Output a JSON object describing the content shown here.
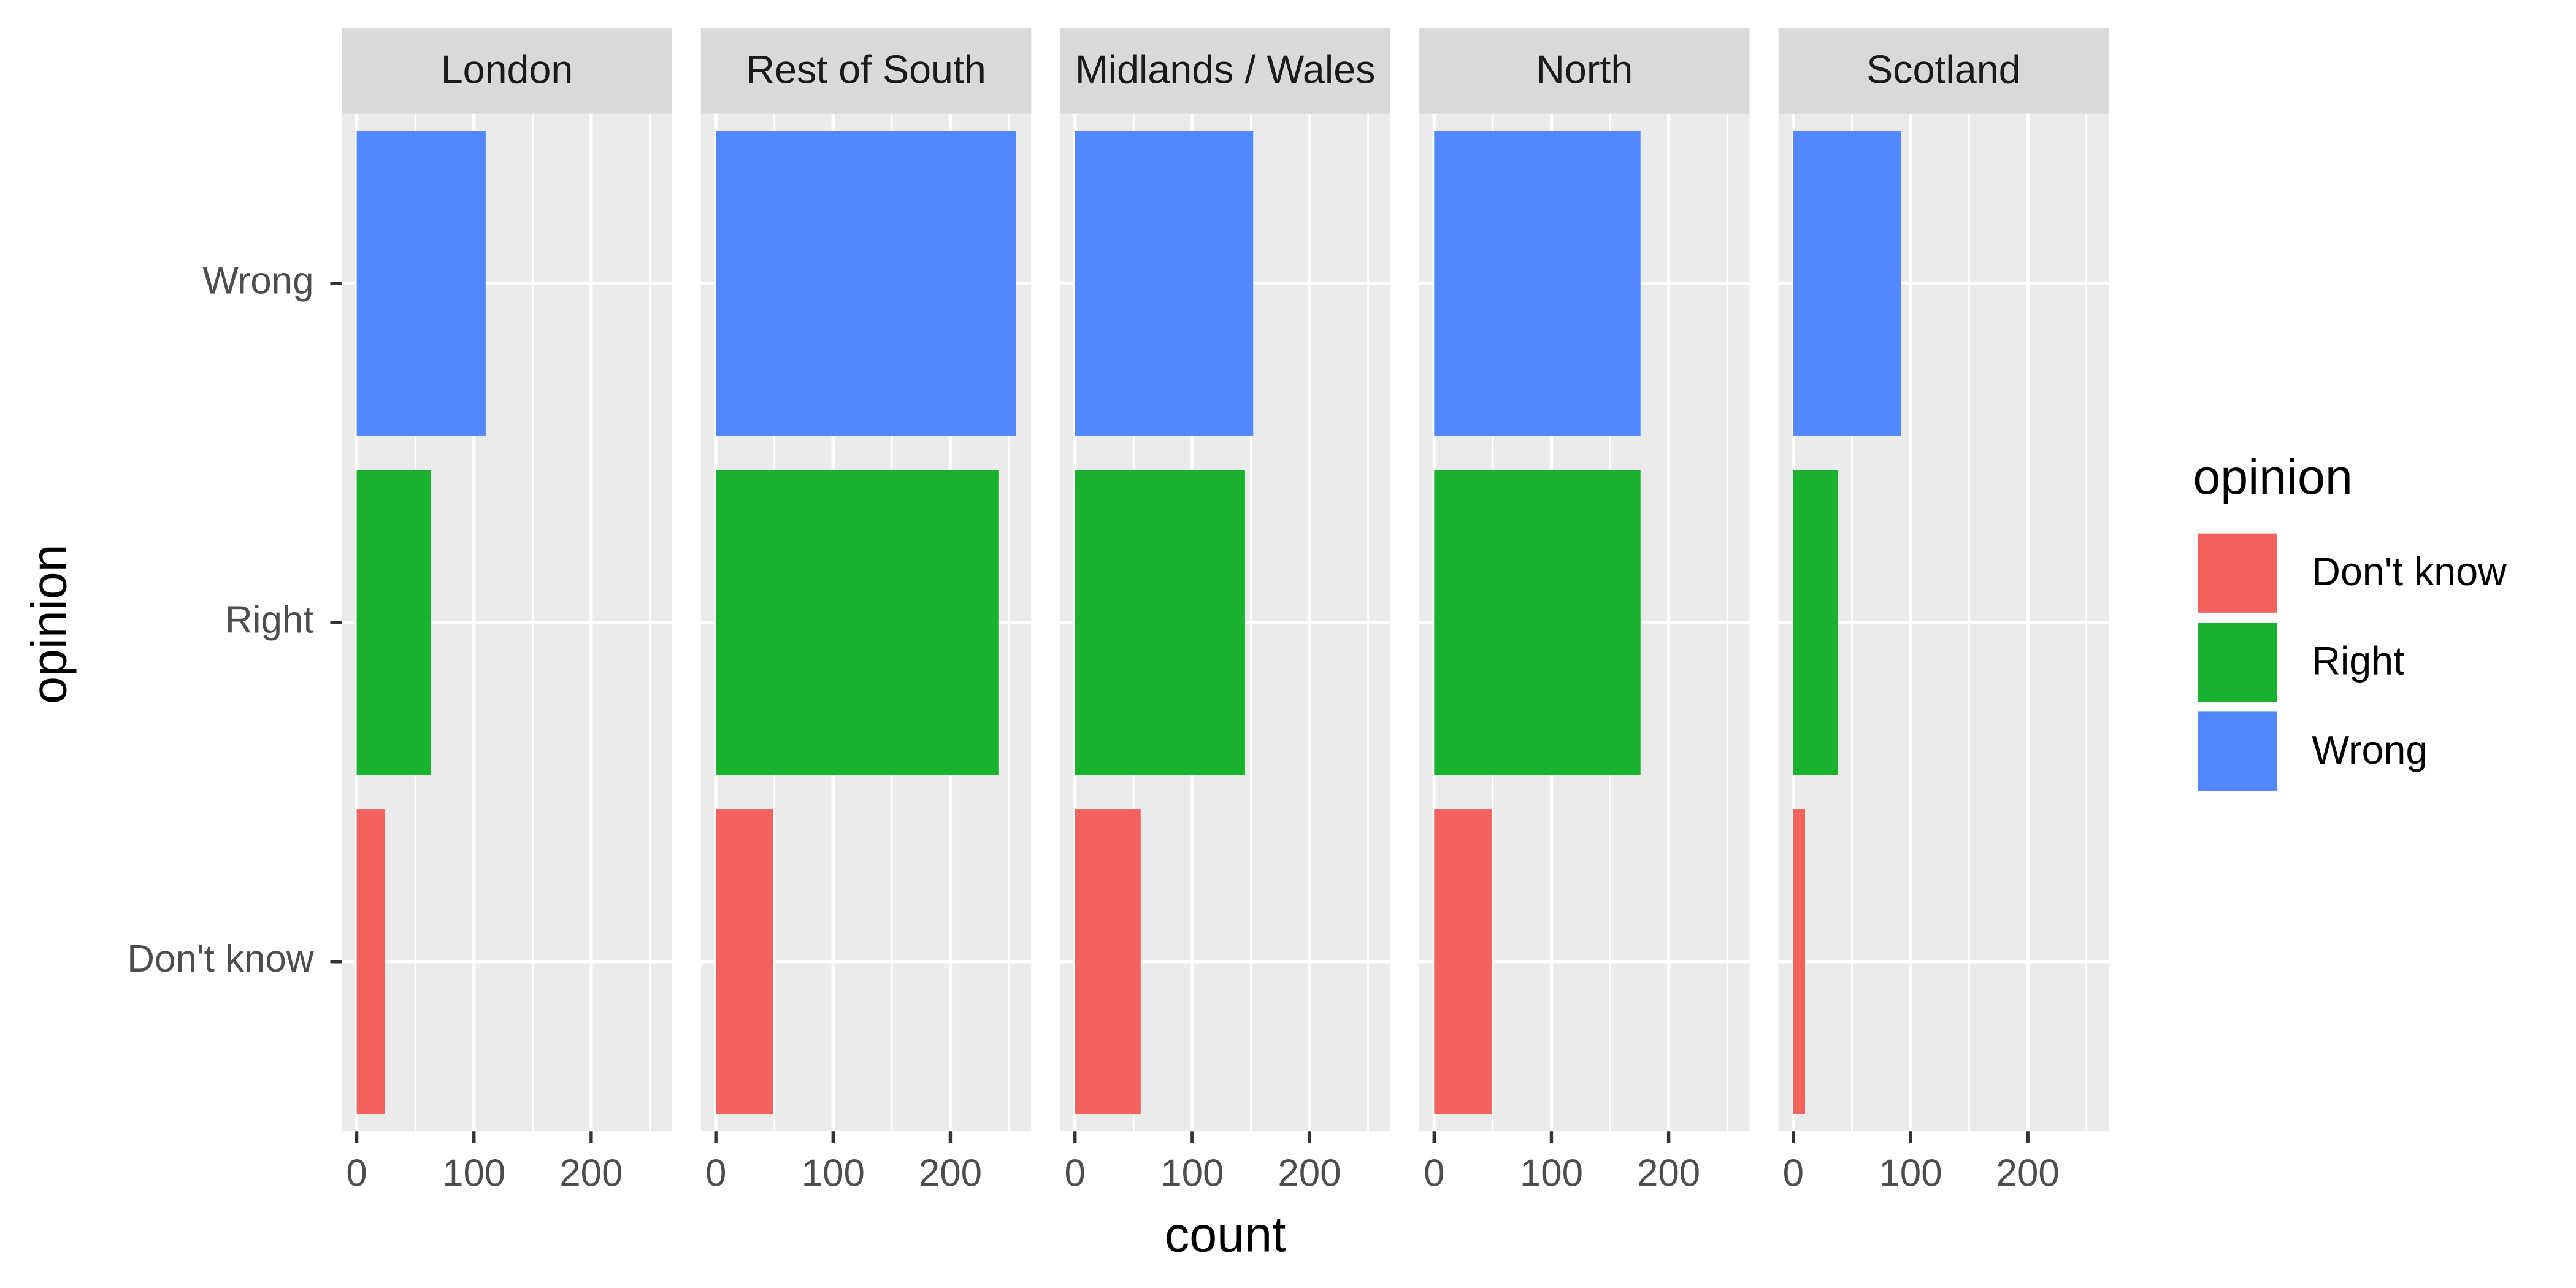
{
  "chart_data": {
    "type": "bar",
    "orientation": "horizontal",
    "categories": [
      "Don't know",
      "Right",
      "Wrong"
    ],
    "colors": [
      "#f3625d",
      "#19b22f",
      "#5288ff"
    ],
    "facets": [
      {
        "name": "London",
        "values": [
          24,
          63,
          110
        ]
      },
      {
        "name": "Rest of South",
        "values": [
          49,
          241,
          256
        ]
      },
      {
        "name": "Midlands / Wales",
        "values": [
          56,
          145,
          152
        ]
      },
      {
        "name": "North",
        "values": [
          49,
          176,
          176
        ]
      },
      {
        "name": "Scotland",
        "values": [
          10,
          38,
          92
        ]
      }
    ],
    "xlim": [
      -12.7,
      269
    ],
    "xticks": [
      0,
      100,
      200
    ],
    "minor_xticks": [
      50,
      150,
      250
    ],
    "xlabel": "count",
    "ylabel": "opinion",
    "legend_title": "opinion",
    "legend": "right",
    "grid": true
  }
}
